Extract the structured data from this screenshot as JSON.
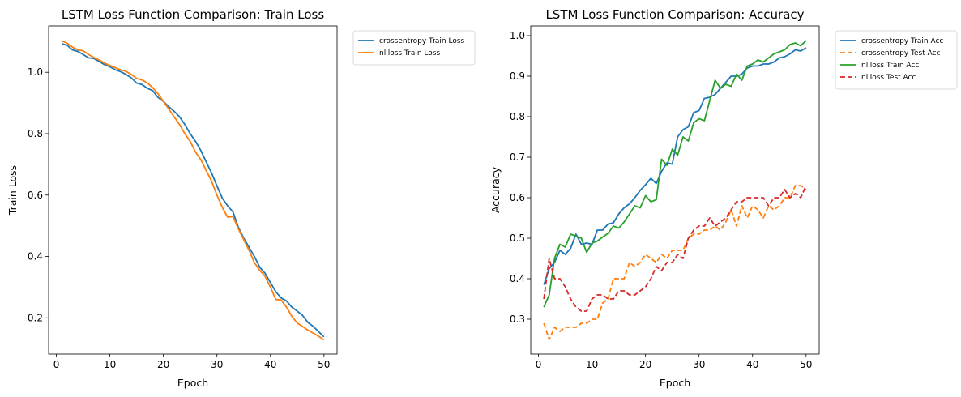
{
  "chart_data": [
    {
      "type": "line",
      "title": "LSTM Loss Function Comparison: Train Loss",
      "xlabel": "Epoch",
      "ylabel": "Train Loss",
      "xlim": [
        -1.45,
        52.45
      ],
      "ylim": [
        0.082,
        1.151
      ],
      "xticks": [
        0,
        10,
        20,
        30,
        40,
        50
      ],
      "yticks": [
        0.2,
        0.4,
        0.6,
        0.8,
        1.0
      ],
      "ytick_decimals": 1,
      "grid": false,
      "legend": "outside-right",
      "x": [
        1,
        2,
        3,
        4,
        5,
        6,
        7,
        8,
        9,
        10,
        11,
        12,
        13,
        14,
        15,
        16,
        17,
        18,
        19,
        20,
        21,
        22,
        23,
        24,
        25,
        26,
        27,
        28,
        29,
        30,
        31,
        32,
        33,
        34,
        35,
        36,
        37,
        38,
        39,
        40,
        41,
        42,
        43,
        44,
        45,
        46,
        47,
        48,
        49,
        50
      ],
      "series": [
        {
          "name": "crossentropy Train Loss",
          "color": "#1f77b4",
          "dash": "",
          "values": [
            1.093,
            1.088,
            1.073,
            1.068,
            1.058,
            1.047,
            1.045,
            1.035,
            1.025,
            1.018,
            1.008,
            1.002,
            0.993,
            0.982,
            0.965,
            0.96,
            0.948,
            0.94,
            0.918,
            0.905,
            0.888,
            0.873,
            0.855,
            0.83,
            0.8,
            0.775,
            0.745,
            0.708,
            0.672,
            0.63,
            0.59,
            0.565,
            0.545,
            0.495,
            0.46,
            0.43,
            0.4,
            0.365,
            0.345,
            0.315,
            0.285,
            0.265,
            0.255,
            0.235,
            0.222,
            0.208,
            0.185,
            0.172,
            0.155,
            0.138
          ]
        },
        {
          "name": "nllloss Train Loss",
          "color": "#ff7f0e",
          "dash": "",
          "values": [
            1.102,
            1.095,
            1.082,
            1.073,
            1.07,
            1.058,
            1.048,
            1.04,
            1.03,
            1.022,
            1.015,
            1.008,
            1.003,
            0.993,
            0.98,
            0.975,
            0.965,
            0.95,
            0.93,
            0.905,
            0.88,
            0.855,
            0.83,
            0.8,
            0.775,
            0.74,
            0.715,
            0.68,
            0.645,
            0.6,
            0.56,
            0.528,
            0.53,
            0.49,
            0.455,
            0.42,
            0.38,
            0.355,
            0.335,
            0.3,
            0.26,
            0.258,
            0.235,
            0.205,
            0.183,
            0.172,
            0.16,
            0.15,
            0.14,
            0.128
          ]
        }
      ]
    },
    {
      "type": "line",
      "title": "LSTM Loss Function Comparison: Accuracy",
      "xlabel": "Epoch",
      "ylabel": "Accuracy",
      "xlim": [
        -1.45,
        52.45
      ],
      "ylim": [
        0.214,
        1.024
      ],
      "xticks": [
        0,
        10,
        20,
        30,
        40,
        50
      ],
      "yticks": [
        0.3,
        0.4,
        0.5,
        0.6,
        0.7,
        0.8,
        0.9,
        1.0
      ],
      "ytick_decimals": 1,
      "grid": false,
      "legend": "outside-right",
      "x": [
        1,
        2,
        3,
        4,
        5,
        6,
        7,
        8,
        9,
        10,
        11,
        12,
        13,
        14,
        15,
        16,
        17,
        18,
        19,
        20,
        21,
        22,
        23,
        24,
        25,
        26,
        27,
        28,
        29,
        30,
        31,
        32,
        33,
        34,
        35,
        36,
        37,
        38,
        39,
        40,
        41,
        42,
        43,
        44,
        45,
        46,
        47,
        48,
        49,
        50
      ],
      "series": [
        {
          "name": "crossentropy Train Acc",
          "color": "#1f77b4",
          "dash": "",
          "values": [
            0.385,
            0.425,
            0.44,
            0.47,
            0.46,
            0.475,
            0.51,
            0.485,
            0.488,
            0.485,
            0.52,
            0.52,
            0.535,
            0.538,
            0.56,
            0.575,
            0.585,
            0.6,
            0.618,
            0.632,
            0.648,
            0.635,
            0.665,
            0.686,
            0.683,
            0.75,
            0.768,
            0.775,
            0.81,
            0.815,
            0.845,
            0.848,
            0.855,
            0.87,
            0.885,
            0.9,
            0.9,
            0.905,
            0.92,
            0.925,
            0.925,
            0.93,
            0.93,
            0.935,
            0.945,
            0.948,
            0.955,
            0.965,
            0.962,
            0.97
          ]
        },
        {
          "name": "crossentropy Test Acc",
          "color": "#ff7f0e",
          "dash": "6,3",
          "values": [
            0.29,
            0.25,
            0.28,
            0.27,
            0.28,
            0.28,
            0.28,
            0.29,
            0.29,
            0.3,
            0.3,
            0.34,
            0.35,
            0.4,
            0.4,
            0.4,
            0.44,
            0.43,
            0.44,
            0.46,
            0.45,
            0.44,
            0.46,
            0.45,
            0.47,
            0.47,
            0.47,
            0.5,
            0.51,
            0.51,
            0.52,
            0.52,
            0.53,
            0.52,
            0.54,
            0.57,
            0.53,
            0.58,
            0.55,
            0.58,
            0.57,
            0.55,
            0.58,
            0.57,
            0.58,
            0.6,
            0.6,
            0.63,
            0.63,
            0.62
          ]
        },
        {
          "name": "nllloss Train Acc",
          "color": "#2ca02c",
          "dash": "",
          "values": [
            0.33,
            0.36,
            0.45,
            0.485,
            0.478,
            0.51,
            0.505,
            0.5,
            0.465,
            0.488,
            0.493,
            0.503,
            0.512,
            0.53,
            0.525,
            0.54,
            0.56,
            0.58,
            0.575,
            0.605,
            0.59,
            0.595,
            0.695,
            0.68,
            0.72,
            0.705,
            0.75,
            0.74,
            0.785,
            0.795,
            0.79,
            0.84,
            0.89,
            0.87,
            0.88,
            0.875,
            0.905,
            0.89,
            0.925,
            0.93,
            0.94,
            0.935,
            0.945,
            0.955,
            0.96,
            0.965,
            0.978,
            0.982,
            0.975,
            0.988
          ]
        },
        {
          "name": "nllloss Test Acc",
          "color": "#d62728",
          "dash": "6,3",
          "values": [
            0.35,
            0.45,
            0.4,
            0.4,
            0.38,
            0.35,
            0.33,
            0.32,
            0.32,
            0.35,
            0.36,
            0.36,
            0.35,
            0.35,
            0.37,
            0.37,
            0.36,
            0.36,
            0.37,
            0.38,
            0.4,
            0.43,
            0.42,
            0.44,
            0.44,
            0.46,
            0.45,
            0.5,
            0.52,
            0.53,
            0.53,
            0.55,
            0.53,
            0.54,
            0.55,
            0.57,
            0.59,
            0.59,
            0.6,
            0.6,
            0.6,
            0.6,
            0.58,
            0.6,
            0.6,
            0.62,
            0.6,
            0.61,
            0.6,
            0.63
          ]
        }
      ]
    }
  ]
}
